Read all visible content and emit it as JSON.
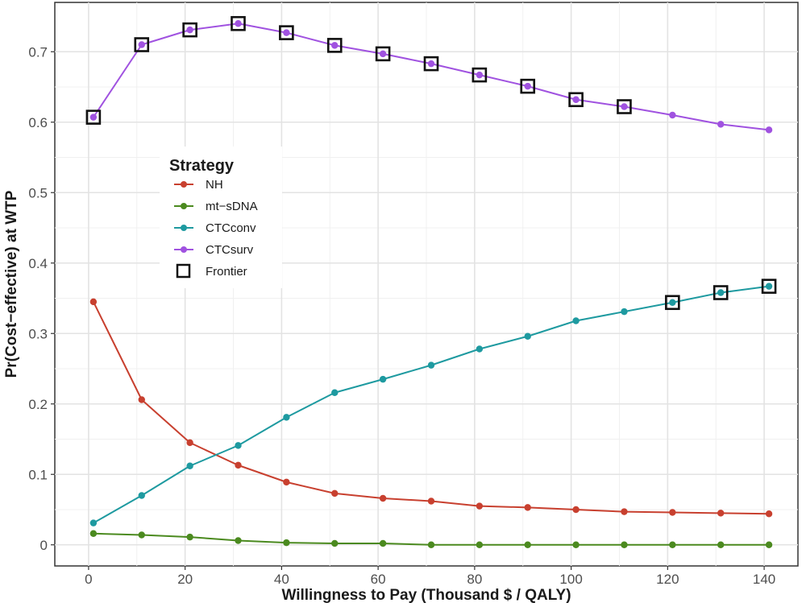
{
  "chart_data": {
    "type": "line",
    "title": "",
    "xlabel": "Willingness to Pay (Thousand $ / QALY)",
    "ylabel": "Pr(Cost−effective) at WTP",
    "xlim": [
      -7,
      147
    ],
    "ylim": [
      -0.03,
      0.77
    ],
    "x_ticks": [
      0,
      20,
      40,
      60,
      80,
      100,
      120,
      140
    ],
    "y_ticks": [
      0,
      0.1,
      0.2,
      0.3,
      0.4,
      0.5,
      0.6,
      0.7
    ],
    "x_tick_labels": [
      "0",
      "20",
      "40",
      "60",
      "80",
      "100",
      "120",
      "140"
    ],
    "y_tick_labels": [
      "0",
      "0.1",
      "0.2",
      "0.3",
      "0.4",
      "0.5",
      "0.6",
      "0.7"
    ],
    "grid": true,
    "x": [
      1,
      11,
      21,
      31,
      41,
      51,
      61,
      71,
      81,
      91,
      101,
      111,
      121,
      131,
      141
    ],
    "series": [
      {
        "name": "NH",
        "color": "#c8402f",
        "values": [
          0.345,
          0.206,
          0.145,
          0.113,
          0.089,
          0.073,
          0.066,
          0.062,
          0.055,
          0.053,
          0.05,
          0.047,
          0.046,
          0.045,
          0.044
        ]
      },
      {
        "name": "mt−sDNA",
        "color": "#4b8a1f",
        "values": [
          0.016,
          0.014,
          0.011,
          0.006,
          0.003,
          0.002,
          0.002,
          0.0,
          0.0,
          0.0,
          0.0,
          0.0,
          0.0,
          0.0,
          0.0
        ]
      },
      {
        "name": "CTCconv",
        "color": "#1e9aa0",
        "values": [
          0.031,
          0.07,
          0.112,
          0.141,
          0.181,
          0.216,
          0.235,
          0.255,
          0.278,
          0.296,
          0.318,
          0.331,
          0.344,
          0.358,
          0.367
        ]
      },
      {
        "name": "CTCsurv",
        "color": "#a052e0",
        "values": [
          0.607,
          0.71,
          0.731,
          0.74,
          0.727,
          0.709,
          0.697,
          0.683,
          0.667,
          0.651,
          0.632,
          0.622,
          0.61,
          0.597,
          0.589
        ]
      }
    ],
    "frontier": [
      {
        "series": "CTCsurv",
        "x": 1,
        "y": 0.607
      },
      {
        "series": "CTCsurv",
        "x": 11,
        "y": 0.71
      },
      {
        "series": "CTCsurv",
        "x": 21,
        "y": 0.731
      },
      {
        "series": "CTCsurv",
        "x": 31,
        "y": 0.74
      },
      {
        "series": "CTCsurv",
        "x": 41,
        "y": 0.727
      },
      {
        "series": "CTCsurv",
        "x": 51,
        "y": 0.709
      },
      {
        "series": "CTCsurv",
        "x": 61,
        "y": 0.697
      },
      {
        "series": "CTCsurv",
        "x": 71,
        "y": 0.683
      },
      {
        "series": "CTCsurv",
        "x": 81,
        "y": 0.667
      },
      {
        "series": "CTCsurv",
        "x": 91,
        "y": 0.651
      },
      {
        "series": "CTCsurv",
        "x": 101,
        "y": 0.632
      },
      {
        "series": "CTCsurv",
        "x": 111,
        "y": 0.622
      },
      {
        "series": "CTCconv",
        "x": 121,
        "y": 0.344
      },
      {
        "series": "CTCconv",
        "x": 131,
        "y": 0.358
      },
      {
        "series": "CTCconv",
        "x": 141,
        "y": 0.367
      }
    ],
    "legend": {
      "title": "Strategy",
      "position": "upper-left",
      "items": [
        "NH",
        "mt−sDNA",
        "CTCconv",
        "CTCsurv"
      ],
      "frontier_label": "Frontier"
    }
  }
}
